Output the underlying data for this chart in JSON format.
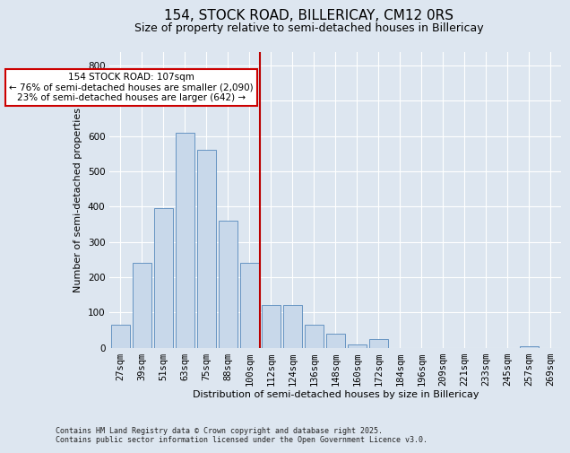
{
  "title": "154, STOCK ROAD, BILLERICAY, CM12 0RS",
  "subtitle": "Size of property relative to semi-detached houses in Billericay",
  "xlabel": "Distribution of semi-detached houses by size in Billericay",
  "ylabel": "Number of semi-detached properties",
  "footnote1": "Contains HM Land Registry data © Crown copyright and database right 2025.",
  "footnote2": "Contains public sector information licensed under the Open Government Licence v3.0.",
  "annotation_line1": "154 STOCK ROAD: 107sqm",
  "annotation_line2": "← 76% of semi-detached houses are smaller (2,090)",
  "annotation_line3": "23% of semi-detached houses are larger (642) →",
  "vline_bin_index": 7,
  "bar_labels": [
    "27sqm",
    "39sqm",
    "51sqm",
    "63sqm",
    "75sqm",
    "88sqm",
    "100sqm",
    "112sqm",
    "124sqm",
    "136sqm",
    "148sqm",
    "160sqm",
    "172sqm",
    "184sqm",
    "196sqm",
    "209sqm",
    "221sqm",
    "233sqm",
    "245sqm",
    "257sqm",
    "269sqm"
  ],
  "bar_values": [
    65,
    240,
    395,
    610,
    560,
    360,
    240,
    120,
    120,
    65,
    40,
    10,
    25,
    0,
    0,
    0,
    0,
    0,
    0,
    5,
    0
  ],
  "bar_color": "#c8d8ea",
  "bar_edgecolor": "#5588bb",
  "vline_color": "#bb0000",
  "bg_color": "#dde6f0",
  "plot_bg_color": "#dde6f0",
  "grid_color": "#ffffff",
  "ylim": [
    0,
    840
  ],
  "yticks": [
    0,
    100,
    200,
    300,
    400,
    500,
    600,
    700,
    800
  ],
  "title_fontsize": 11,
  "subtitle_fontsize": 9,
  "xlabel_fontsize": 8,
  "ylabel_fontsize": 8,
  "tick_fontsize": 7.5,
  "annot_fontsize": 7.5
}
